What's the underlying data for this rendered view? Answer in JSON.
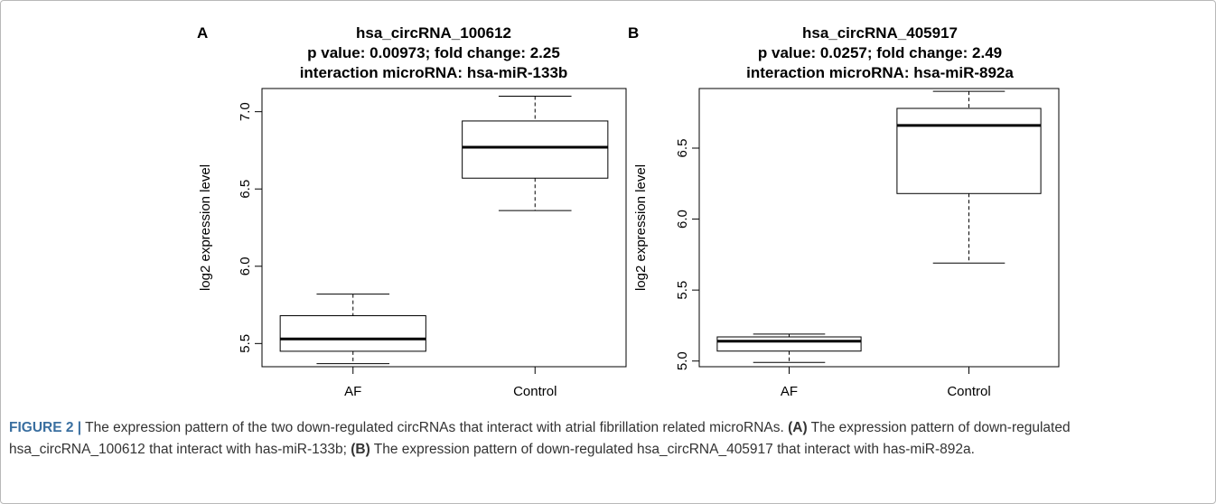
{
  "chart_data": [
    {
      "type": "boxplot",
      "panel_label": "A",
      "title_lines": [
        "hsa_circRNA_100612",
        "p value: 0.00973; fold change: 2.25",
        "interaction microRNA: hsa-miR-133b"
      ],
      "xlabel": "",
      "ylabel": "log2 expression level",
      "categories": [
        "AF",
        "Control"
      ],
      "ylim": [
        5.35,
        7.15
      ],
      "yticks": [
        "5.5",
        "6.0",
        "6.5",
        "7.0"
      ],
      "boxes": [
        {
          "name": "AF",
          "min": 5.37,
          "q1": 5.45,
          "median": 5.53,
          "q3": 5.68,
          "max": 5.82
        },
        {
          "name": "Control",
          "min": 6.36,
          "q1": 6.57,
          "median": 6.77,
          "q3": 6.94,
          "max": 7.1
        }
      ]
    },
    {
      "type": "boxplot",
      "panel_label": "B",
      "title_lines": [
        "hsa_circRNA_405917",
        "p value: 0.0257; fold change: 2.49",
        "interaction microRNA: hsa-miR-892a"
      ],
      "xlabel": "",
      "ylabel": "log2 expression level",
      "categories": [
        "AF",
        "Control"
      ],
      "ylim": [
        4.96,
        6.92
      ],
      "yticks": [
        "5.0",
        "5.5",
        "6.0",
        "6.5"
      ],
      "boxes": [
        {
          "name": "AF",
          "min": 4.99,
          "q1": 5.07,
          "median": 5.14,
          "q3": 5.17,
          "max": 5.19
        },
        {
          "name": "Control",
          "min": 5.69,
          "q1": 6.18,
          "median": 6.66,
          "q3": 6.78,
          "max": 6.9
        }
      ]
    }
  ],
  "caption": {
    "figure_label": "FIGURE 2 |",
    "text_1": " The expression pattern of the two down-regulated circRNAs that interact with atrial fibrillation related microRNAs. ",
    "ref_a": "(A)",
    "text_2": " The expression pattern of down-regulated hsa_circRNA_100612 that interact with has-miR-133b; ",
    "ref_b": "(B)",
    "text_3": " The expression pattern of down-regulated hsa_circRNA_405917 that interact with has-miR-892a."
  }
}
